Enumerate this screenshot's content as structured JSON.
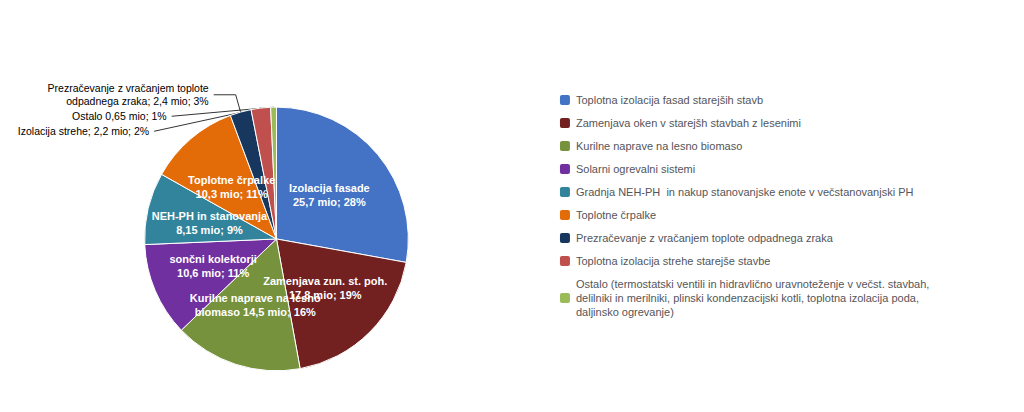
{
  "chart_data": {
    "type": "pie",
    "categories": [
      "Toplotna izolacija fasad starejših stavb",
      "Zamenjava oken v starejšh stavbah z lesenimi",
      "Kurilne naprave na lesno biomaso",
      "Solarni ogrevalni sistemi",
      "Gradnja NEH-PH  in nakup stanovanjske enote v večstanovanjski PH",
      "Toplotne črpalke",
      "Prezračevanje z vračanjem toplote odpadnega zraka",
      "Toplotna izolacija strehe starejše stavbe",
      "Ostalo (termostatski ventili in hidravlično uravnoteženje v večst. stavbah,\ndelilniki in merilniki, plinski kondenzacijski kotli, toplotna izolacija poda,\ndaljinsko ogrevanje)"
    ],
    "values": [
      25.7,
      17.8,
      14.5,
      10.6,
      8.15,
      10.3,
      2.4,
      2.2,
      0.65
    ],
    "value_labels": [
      "Izolacija fasade\n25,7 mio; 28%",
      "Zamenjava zun. st. poh.\n17,8 mio; 19%",
      "Kurilne naprave na lesno\nbiomaso 14,5 mio; 16%",
      "sončni kolektorji\n10,6 mio; 11%",
      "NEH-PH in stanovanja\n8,15 mio; 9%",
      "Toplotne črpalke\n10,3 mio; 11%",
      "Prezračevanje z vračanjem toplote\nodpadnega zraka; 2,4 mio; 3%",
      "Izolacija strehe; 2,2 mio; 2%",
      "Ostalo 0,65 mio; 1%"
    ],
    "colors": [
      "#4472C4",
      "#722020",
      "#76923C",
      "#7030A0",
      "#31849B",
      "#E36C09",
      "#17375E",
      "#C0504D",
      "#9BBB59"
    ],
    "data_labels": true,
    "legend": "right"
  }
}
